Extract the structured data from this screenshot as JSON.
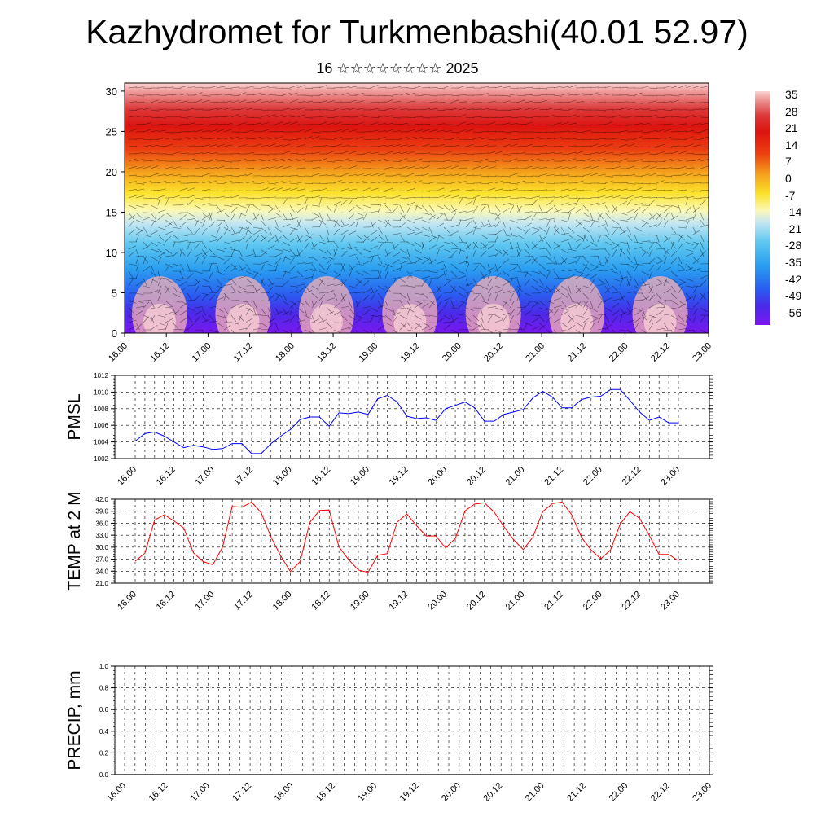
{
  "header": {
    "title": "Kazhydromet for Turkmenbashi(40.01 52.97)",
    "subtitle": "16 ☆☆☆☆☆☆☆☆ 2025"
  },
  "colorbar": {
    "labels": [
      "35",
      "28",
      "21",
      "14",
      "7",
      "0",
      "-7",
      "-14",
      "-21",
      "-28",
      "-35",
      "-42",
      "-49",
      "-56"
    ]
  },
  "chart_data": [
    {
      "type": "heatmap",
      "name": "vertical-cross-section",
      "x_tick_labels": [
        "16.00",
        "16.12",
        "17.00",
        "17.12",
        "18.00",
        "18.12",
        "19.00",
        "19.12",
        "20.00",
        "20.12",
        "21.00",
        "21.12",
        "22.00",
        "22.12",
        "23.00"
      ],
      "y_tick_labels": [
        "0",
        "5",
        "10",
        "15",
        "20",
        "25",
        "30"
      ],
      "ylim": [
        0,
        31
      ],
      "colorscale": {
        "min": -60,
        "max": 38,
        "stops": [
          {
            "value": -60,
            "color": "#7a18f0"
          },
          {
            "value": -52,
            "color": "#4a2ae8"
          },
          {
            "value": -45,
            "color": "#2a5cf0"
          },
          {
            "value": -35,
            "color": "#2a9ef0"
          },
          {
            "value": -25,
            "color": "#60c8f0"
          },
          {
            "value": -17,
            "color": "#c4e6f2"
          },
          {
            "value": -12,
            "color": "#fbf8b8"
          },
          {
            "value": -5,
            "color": "#fbe22a"
          },
          {
            "value": 3,
            "color": "#f5a21c"
          },
          {
            "value": 12,
            "color": "#ec3e10"
          },
          {
            "value": 21,
            "color": "#dc1410"
          },
          {
            "value": 28,
            "color": "#dc3a3a"
          },
          {
            "value": 35,
            "color": "#f0a0a0"
          },
          {
            "value": 38,
            "color": "#fbd2d2"
          }
        ]
      }
    },
    {
      "type": "line",
      "name": "pmsl",
      "ylabel": "PMSL",
      "x_tick_labels": [
        "16.00",
        "16.12",
        "17.00",
        "17.12",
        "18.00",
        "18.12",
        "19.00",
        "19.12",
        "20.00",
        "20.12",
        "21.00",
        "21.12",
        "22.00",
        "22.12",
        "23.00"
      ],
      "y_tick_labels": [
        "1002",
        "1004",
        "1006",
        "1008",
        "1010",
        "1012"
      ],
      "ylim": [
        1002,
        1012
      ],
      "color": "#0000ff",
      "values": [
        1004.1,
        1005.0,
        1005.2,
        1004.7,
        1004.0,
        1003.3,
        1003.6,
        1003.4,
        1003.1,
        1003.2,
        1003.8,
        1003.8,
        1002.6,
        1002.6,
        1003.8,
        1004.7,
        1005.5,
        1006.7,
        1007.0,
        1007.0,
        1005.9,
        1007.5,
        1007.4,
        1007.6,
        1007.3,
        1009.2,
        1009.6,
        1008.8,
        1007.1,
        1006.8,
        1006.9,
        1006.6,
        1008.0,
        1008.4,
        1008.8,
        1008.1,
        1006.5,
        1006.5,
        1007.3,
        1007.6,
        1007.9,
        1009.3,
        1010.1,
        1009.4,
        1008.1,
        1008.1,
        1009.1,
        1009.4,
        1009.5,
        1010.3,
        1010.3,
        1009.0,
        1007.6,
        1006.6,
        1007.0,
        1006.3,
        1006.3
      ]
    },
    {
      "type": "line",
      "name": "temp-2m",
      "ylabel": "TEMP at 2 M",
      "x_tick_labels": [
        "16.00",
        "16.12",
        "17.00",
        "17.12",
        "18.00",
        "18.12",
        "19.00",
        "19.12",
        "20.00",
        "20.12",
        "21.00",
        "21.12",
        "22.00",
        "22.12",
        "23.00"
      ],
      "y_tick_labels": [
        "21.0",
        "24.0",
        "27.0",
        "30.0",
        "33.0",
        "36.0",
        "39.0",
        "42.0"
      ],
      "ylim": [
        21,
        42
      ],
      "color": "#ff0000",
      "values": [
        26.5,
        28.5,
        36.8,
        38.1,
        36.6,
        34.8,
        28.6,
        26.4,
        25.6,
        30.0,
        40.2,
        40.0,
        41.3,
        38.6,
        32.5,
        27.8,
        23.9,
        26.4,
        36.2,
        39.2,
        39.3,
        30.1,
        26.9,
        24.3,
        23.7,
        28.0,
        28.4,
        36.3,
        38.3,
        35.4,
        32.8,
        32.8,
        29.8,
        32.2,
        39.1,
        40.8,
        41.1,
        38.8,
        35.2,
        31.9,
        29.4,
        32.5,
        38.9,
        40.9,
        41.3,
        38.1,
        32.5,
        29.3,
        27.1,
        29.3,
        35.8,
        38.9,
        37.2,
        32.9,
        28.2,
        28.2,
        26.6
      ]
    },
    {
      "type": "bar",
      "name": "precip",
      "ylabel": "PRECIP, mm",
      "x_tick_labels": [
        "16.00",
        "16.12",
        "17.00",
        "17.12",
        "18.00",
        "18.12",
        "19.00",
        "19.12",
        "20.00",
        "20.12",
        "21.00",
        "21.12",
        "22.00",
        "22.12",
        "23.00"
      ],
      "y_tick_labels": [
        "0.0",
        "0.2",
        "0.4",
        "0.6",
        "0.8",
        "1.0"
      ],
      "ylim": [
        0,
        1
      ],
      "values": []
    }
  ]
}
